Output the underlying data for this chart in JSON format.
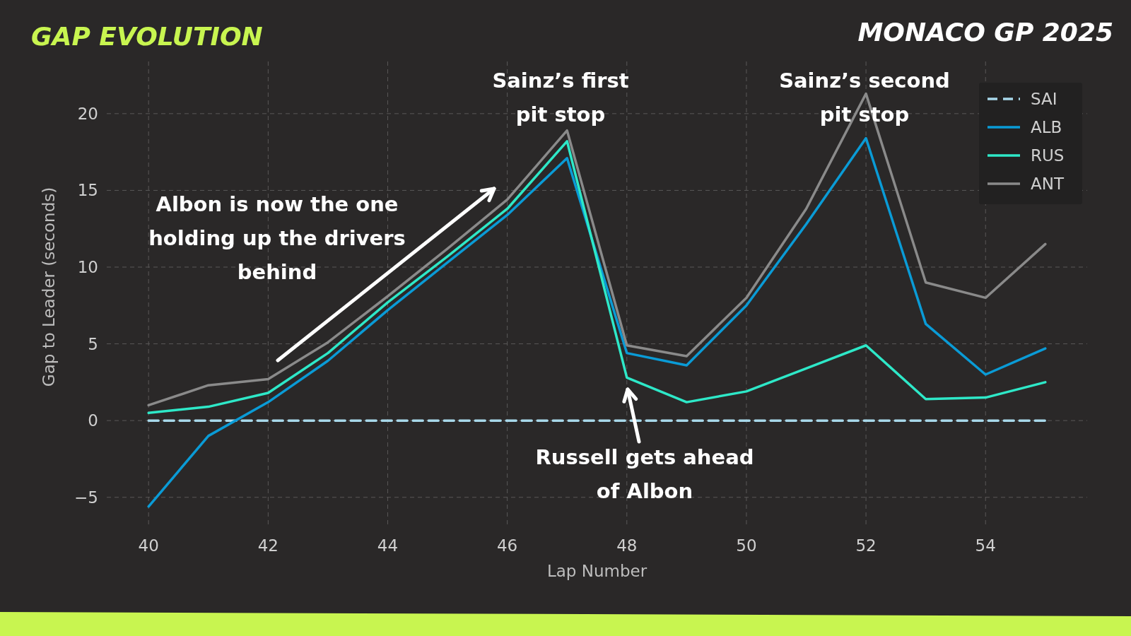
{
  "chart_data": {
    "type": "line",
    "title": "GAP EVOLUTION",
    "subtitle": "MONACO GP 2025",
    "xlabel": "Lap Number",
    "ylabel": "Gap to Leader (seconds)",
    "x": [
      40,
      41,
      42,
      43,
      44,
      45,
      46,
      47,
      48,
      49,
      50,
      51,
      52,
      53,
      54,
      55
    ],
    "series": [
      {
        "name": "SAI",
        "color": "#a8d8ea",
        "line_style": "dashed",
        "values": [
          0,
          0,
          0,
          0,
          0,
          0,
          0,
          0,
          0,
          0,
          0,
          0,
          0,
          0,
          0,
          0
        ]
      },
      {
        "name": "ALB",
        "color": "#0a9bd6",
        "values": [
          -5.6,
          -1.0,
          1.2,
          3.9,
          7.2,
          10.3,
          13.4,
          17.1,
          4.4,
          3.6,
          7.5,
          12.8,
          18.4,
          6.3,
          3.0,
          4.7
        ]
      },
      {
        "name": "RUS",
        "color": "#2ee8c8",
        "values": [
          0.5,
          0.9,
          1.8,
          4.4,
          7.7,
          10.7,
          13.8,
          18.2,
          2.8,
          1.2,
          1.9,
          3.4,
          4.9,
          1.4,
          1.5,
          2.5
        ]
      },
      {
        "name": "ANT",
        "color": "#8a8a8a",
        "values": [
          1.0,
          2.3,
          2.7,
          5.1,
          8.1,
          11.2,
          14.4,
          18.9,
          4.9,
          4.2,
          8.0,
          13.8,
          21.3,
          9.0,
          8.0,
          11.5
        ]
      }
    ],
    "xlim": [
      39.3,
      55.7
    ],
    "xticks": [
      40,
      42,
      44,
      46,
      48,
      50,
      52,
      54
    ],
    "ylim": [
      -6.9,
      23.4
    ],
    "yticks": [
      {
        "value": -5,
        "label": "−5"
      },
      0,
      5,
      10,
      15,
      20
    ],
    "grid": true,
    "legend": "top right",
    "line_style": "solid",
    "annotations": [
      "Albon is now the one holding up the drivers behind",
      "Sainz’s first pit stop",
      "Sainz’s second pit stop",
      "Russell gets ahead of Albon"
    ]
  }
}
